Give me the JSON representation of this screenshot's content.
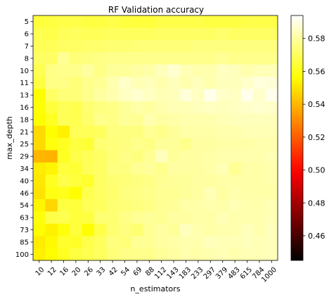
{
  "chart_data": {
    "type": "heatmap",
    "title": "RF Validation accuracy",
    "xlabel": "n_estimators",
    "ylabel": "max_depth",
    "x": [
      "10",
      "12",
      "16",
      "20",
      "26",
      "33",
      "42",
      "54",
      "69",
      "88",
      "112",
      "143",
      "183",
      "233",
      "297",
      "379",
      "483",
      "615",
      "784",
      "1000"
    ],
    "y": [
      "5",
      "6",
      "7",
      "8",
      "10",
      "11",
      "13",
      "16",
      "18",
      "21",
      "25",
      "29",
      "34",
      "40",
      "46",
      "54",
      "63",
      "73",
      "85",
      "100"
    ],
    "colormap": "hot",
    "vmin": 0.445,
    "vmax": 0.594,
    "colorbar_ticks": [
      0.46,
      0.48,
      0.5,
      0.52,
      0.54,
      0.56,
      0.58
    ],
    "colorbar_tick_labels": [
      "0.46",
      "0.48",
      "0.50",
      "0.52",
      "0.54",
      "0.56",
      "0.58"
    ],
    "values": [
      [
        0.565,
        0.566,
        0.567,
        0.567,
        0.566,
        0.566,
        0.567,
        0.566,
        0.565,
        0.565,
        0.567,
        0.567,
        0.567,
        0.567,
        0.566,
        0.566,
        0.566,
        0.567,
        0.567,
        0.567
      ],
      [
        0.568,
        0.567,
        0.569,
        0.57,
        0.569,
        0.569,
        0.57,
        0.57,
        0.57,
        0.57,
        0.571,
        0.571,
        0.571,
        0.571,
        0.571,
        0.572,
        0.571,
        0.571,
        0.571,
        0.571
      ],
      [
        0.569,
        0.569,
        0.571,
        0.571,
        0.572,
        0.572,
        0.573,
        0.573,
        0.574,
        0.574,
        0.574,
        0.574,
        0.574,
        0.575,
        0.575,
        0.575,
        0.575,
        0.575,
        0.575,
        0.575
      ],
      [
        0.571,
        0.571,
        0.578,
        0.574,
        0.575,
        0.576,
        0.577,
        0.577,
        0.577,
        0.577,
        0.577,
        0.577,
        0.577,
        0.577,
        0.577,
        0.578,
        0.577,
        0.577,
        0.577,
        0.577
      ],
      [
        0.568,
        0.576,
        0.577,
        0.577,
        0.58,
        0.576,
        0.579,
        0.579,
        0.58,
        0.581,
        0.584,
        0.587,
        0.583,
        0.582,
        0.582,
        0.585,
        0.584,
        0.582,
        0.583,
        0.583
      ],
      [
        0.566,
        0.576,
        0.576,
        0.574,
        0.577,
        0.578,
        0.582,
        0.586,
        0.583,
        0.584,
        0.582,
        0.584,
        0.582,
        0.584,
        0.582,
        0.584,
        0.584,
        0.586,
        0.589,
        0.588
      ],
      [
        0.556,
        0.571,
        0.574,
        0.574,
        0.577,
        0.58,
        0.582,
        0.585,
        0.587,
        0.585,
        0.583,
        0.584,
        0.588,
        0.585,
        0.591,
        0.586,
        0.585,
        0.591,
        0.586,
        0.591
      ],
      [
        0.557,
        0.565,
        0.569,
        0.568,
        0.573,
        0.575,
        0.576,
        0.579,
        0.581,
        0.58,
        0.582,
        0.583,
        0.583,
        0.584,
        0.585,
        0.584,
        0.585,
        0.586,
        0.587,
        0.586
      ],
      [
        0.556,
        0.561,
        0.569,
        0.568,
        0.572,
        0.577,
        0.576,
        0.579,
        0.578,
        0.582,
        0.58,
        0.581,
        0.582,
        0.582,
        0.582,
        0.583,
        0.584,
        0.584,
        0.584,
        0.584
      ],
      [
        0.548,
        0.556,
        0.553,
        0.569,
        0.569,
        0.57,
        0.575,
        0.575,
        0.575,
        0.578,
        0.577,
        0.579,
        0.581,
        0.581,
        0.581,
        0.582,
        0.582,
        0.583,
        0.583,
        0.583
      ],
      [
        0.548,
        0.558,
        0.561,
        0.566,
        0.564,
        0.573,
        0.574,
        0.575,
        0.577,
        0.576,
        0.579,
        0.579,
        0.577,
        0.58,
        0.58,
        0.581,
        0.581,
        0.581,
        0.582,
        0.582
      ],
      [
        0.54,
        0.539,
        0.561,
        0.567,
        0.569,
        0.571,
        0.574,
        0.576,
        0.575,
        0.578,
        0.584,
        0.579,
        0.58,
        0.58,
        0.581,
        0.582,
        0.582,
        0.582,
        0.582,
        0.583
      ],
      [
        0.552,
        0.554,
        0.565,
        0.564,
        0.569,
        0.571,
        0.575,
        0.575,
        0.578,
        0.579,
        0.577,
        0.58,
        0.58,
        0.58,
        0.581,
        0.583,
        0.578,
        0.581,
        0.581,
        0.582
      ],
      [
        0.551,
        0.561,
        0.567,
        0.565,
        0.563,
        0.571,
        0.573,
        0.574,
        0.575,
        0.576,
        0.578,
        0.579,
        0.579,
        0.58,
        0.58,
        0.581,
        0.581,
        0.581,
        0.581,
        0.582
      ],
      [
        0.55,
        0.559,
        0.56,
        0.556,
        0.568,
        0.571,
        0.572,
        0.575,
        0.576,
        0.577,
        0.578,
        0.578,
        0.579,
        0.58,
        0.583,
        0.58,
        0.582,
        0.581,
        0.581,
        0.581
      ],
      [
        0.554,
        0.547,
        0.566,
        0.565,
        0.569,
        0.57,
        0.573,
        0.574,
        0.575,
        0.576,
        0.578,
        0.579,
        0.581,
        0.581,
        0.582,
        0.581,
        0.583,
        0.582,
        0.582,
        0.583
      ],
      [
        0.558,
        0.567,
        0.568,
        0.565,
        0.566,
        0.573,
        0.573,
        0.576,
        0.578,
        0.579,
        0.578,
        0.58,
        0.58,
        0.581,
        0.581,
        0.583,
        0.582,
        0.582,
        0.582,
        0.583
      ],
      [
        0.556,
        0.553,
        0.558,
        0.565,
        0.556,
        0.567,
        0.573,
        0.575,
        0.573,
        0.578,
        0.58,
        0.579,
        0.584,
        0.582,
        0.581,
        0.582,
        0.582,
        0.584,
        0.582,
        0.584
      ],
      [
        0.552,
        0.555,
        0.563,
        0.562,
        0.567,
        0.57,
        0.575,
        0.574,
        0.578,
        0.578,
        0.58,
        0.581,
        0.582,
        0.582,
        0.584,
        0.583,
        0.583,
        0.584,
        0.583,
        0.584
      ],
      [
        0.553,
        0.556,
        0.561,
        0.566,
        0.568,
        0.57,
        0.574,
        0.576,
        0.577,
        0.577,
        0.579,
        0.58,
        0.582,
        0.581,
        0.582,
        0.583,
        0.582,
        0.583,
        0.583,
        0.584
      ]
    ]
  }
}
